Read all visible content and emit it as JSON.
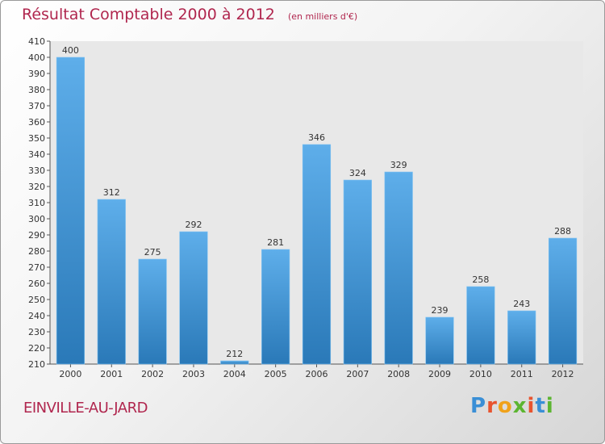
{
  "header": {
    "title": "Résultat Comptable 2000 à 2012",
    "unit": "(en milliers d'€)"
  },
  "footer": {
    "commune": "EINVILLE-AU-JARD",
    "logo_text": "Proxiti"
  },
  "colors": {
    "title": "#b0264e",
    "bar_top": "#5eaeea",
    "bar_bottom": "#2a79b8",
    "plot_bg": "#e8e8e8"
  },
  "chart_data": {
    "type": "bar",
    "title": "Résultat Comptable 2000 à 2012",
    "subtitle": "(en milliers d'€)",
    "xlabel": "",
    "ylabel": "",
    "categories": [
      "2000",
      "2001",
      "2002",
      "2003",
      "2004",
      "2005",
      "2006",
      "2007",
      "2008",
      "2009",
      "2010",
      "2011",
      "2012"
    ],
    "values": [
      400,
      312,
      275,
      292,
      212,
      281,
      346,
      324,
      329,
      239,
      258,
      243,
      288
    ],
    "ylim": [
      210,
      410
    ],
    "ytick_step": 10,
    "grid": false,
    "legend": "none",
    "data_labels": true
  }
}
